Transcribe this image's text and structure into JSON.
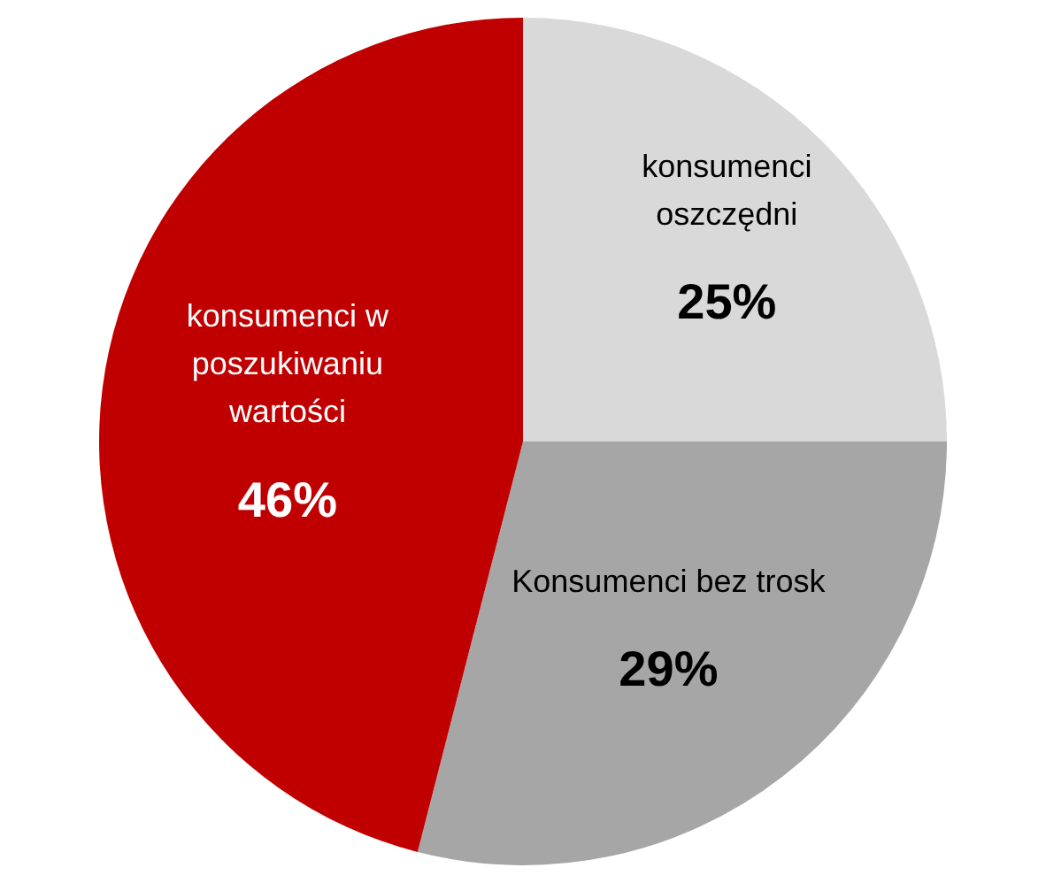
{
  "chart_data": {
    "type": "pie",
    "categories": [
      "konsumenci oszczędni",
      "Konsumenci bez trosk",
      "konsumenci w poszukiwaniu wartości"
    ],
    "values": [
      25,
      29,
      46
    ],
    "value_labels": [
      "25%",
      "29%",
      "46%"
    ],
    "colors": [
      "#d9d9d9",
      "#a6a6a6",
      "#c00000"
    ],
    "legend": false
  }
}
